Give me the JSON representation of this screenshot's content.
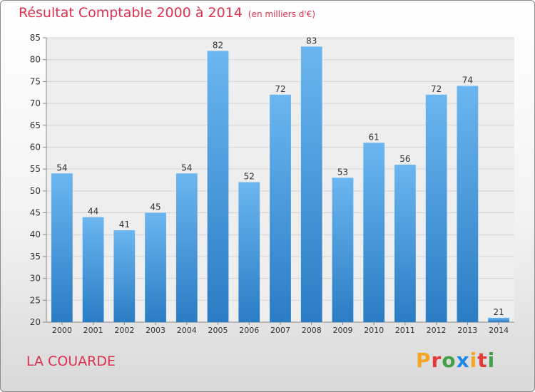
{
  "title": "Résultat Comptable 2000 à 2014",
  "subtitle": "(en milliers d'€)",
  "place": "LA COUARDE",
  "brand": {
    "letters": [
      "P",
      "r",
      "o",
      "x",
      "i",
      "t",
      "i"
    ],
    "colors": [
      "#f5a623",
      "#e53935",
      "#43a047",
      "#1e88e5",
      "#f5a623",
      "#e53935",
      "#43a047"
    ]
  },
  "chart_data": {
    "type": "bar",
    "categories": [
      "2000",
      "2001",
      "2002",
      "2003",
      "2004",
      "2005",
      "2006",
      "2007",
      "2008",
      "2009",
      "2010",
      "2011",
      "2012",
      "2013",
      "2014"
    ],
    "values": [
      54,
      44,
      41,
      45,
      54,
      82,
      52,
      72,
      83,
      53,
      61,
      56,
      72,
      74,
      21
    ],
    "ylim": [
      20,
      85
    ],
    "yticks": [
      20,
      25,
      30,
      35,
      40,
      45,
      50,
      55,
      60,
      65,
      70,
      75,
      80,
      85
    ],
    "grid": true,
    "bar_color": "#4a9ee0"
  }
}
